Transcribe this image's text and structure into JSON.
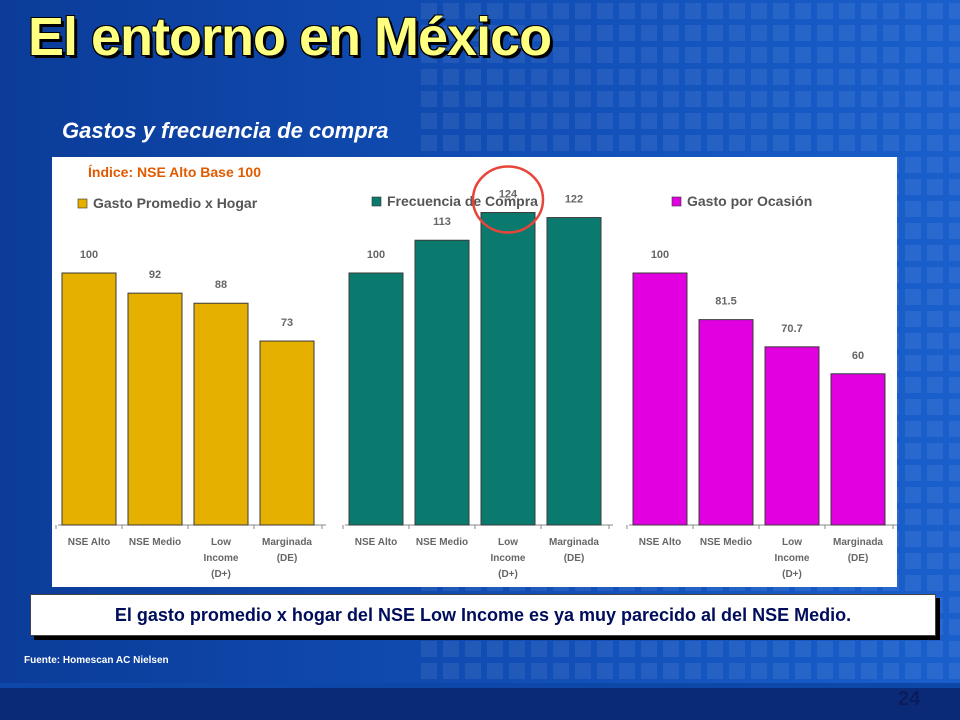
{
  "slide": {
    "title": "El entorno en México",
    "subtitle": "Gastos y frecuencia de compra",
    "index_note": "Índice: NSE Alto Base 100",
    "conclusion": "El gasto promedio x hogar del NSE Low Income es ya muy parecido al del NSE Medio.",
    "source": "Fuente: Homescan AC Nielsen",
    "page_number": "24"
  },
  "colors": {
    "background": "#0a3a8f",
    "title": "#ffff80",
    "index_note": "#e05a00",
    "highlight_circle": "#e8443a"
  },
  "chart_data": [
    {
      "type": "bar",
      "title": "Gasto Promedio x Hogar",
      "categories": [
        [
          "NSE Alto"
        ],
        [
          "NSE Medio"
        ],
        [
          "Low",
          "Income",
          "(D+)"
        ],
        [
          "Marginada",
          "(DE)"
        ]
      ],
      "values": [
        100,
        92,
        88,
        73
      ],
      "value_labels": [
        "100",
        "92",
        "88",
        "73"
      ],
      "color": "#e6b000",
      "ylim": [
        0,
        130
      ]
    },
    {
      "type": "bar",
      "title": "Frecuencia de Compra",
      "categories": [
        [
          "NSE Alto"
        ],
        [
          "NSE Medio"
        ],
        [
          "Low",
          "Income",
          "(D+)"
        ],
        [
          "Marginada",
          "(DE)"
        ]
      ],
      "values": [
        100,
        113,
        124,
        122
      ],
      "value_labels": [
        "100",
        "113",
        "124",
        "122"
      ],
      "color": "#0b7a6e",
      "ylim": [
        0,
        130
      ],
      "highlight_index": 2
    },
    {
      "type": "bar",
      "title": "Gasto por Ocasión",
      "categories": [
        [
          "NSE Alto"
        ],
        [
          "NSE Medio"
        ],
        [
          "Low",
          "Income",
          "(D+)"
        ],
        [
          "Marginada",
          "(DE)"
        ]
      ],
      "values": [
        100,
        81.5,
        70.7,
        60
      ],
      "value_labels": [
        "100",
        "81.5",
        "70.7",
        "60"
      ],
      "color": "#e000e0",
      "ylim": [
        0,
        130
      ]
    }
  ]
}
